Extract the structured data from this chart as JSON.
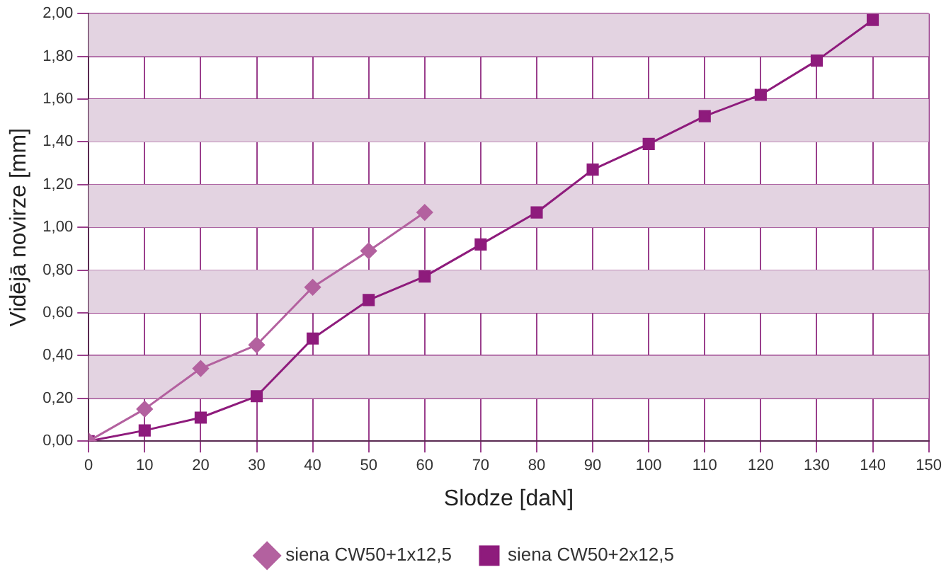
{
  "chart_data": {
    "type": "line",
    "xlabel": "Slodze [daN]",
    "ylabel": "Vidējā novirze [mm]",
    "xlim": [
      0,
      150
    ],
    "xticks": [
      0,
      10,
      20,
      30,
      40,
      50,
      60,
      70,
      80,
      90,
      100,
      110,
      120,
      130,
      140,
      150
    ],
    "ylim": [
      0,
      2
    ],
    "yticks": [
      {
        "value": 0,
        "label": "0,00"
      },
      {
        "value": 0.2,
        "label": "0,20"
      },
      {
        "value": 0.4,
        "label": "0,40"
      },
      {
        "value": 0.6,
        "label": "0,60"
      },
      {
        "value": 0.8,
        "label": "0,80"
      },
      {
        "value": 1,
        "label": "1,00"
      },
      {
        "value": 1.2,
        "label": "1,20"
      },
      {
        "value": 1.4,
        "label": "1,40"
      },
      {
        "value": 1.6,
        "label": "1,60"
      },
      {
        "value": 1.8,
        "label": "1,80"
      },
      {
        "value": 2,
        "label": "2,00"
      }
    ],
    "grid": true,
    "legend": "bottom",
    "line_style": "solid",
    "bands": [
      {
        "axis": "y",
        "from": 0.2,
        "to": 0.4,
        "color": "#e3d3e1"
      },
      {
        "axis": "y",
        "from": 0.6,
        "to": 0.8,
        "color": "#e3d3e1"
      },
      {
        "axis": "y",
        "from": 1.0,
        "to": 1.2,
        "color": "#e3d3e1"
      },
      {
        "axis": "y",
        "from": 1.4,
        "to": 1.6,
        "color": "#e3d3e1"
      },
      {
        "axis": "y",
        "from": 1.8,
        "to": 2.0,
        "color": "#e3d3e1"
      }
    ],
    "series": [
      {
        "name": "siena CW50+1x12,5",
        "color": "#b3619f",
        "marker": "diamond",
        "x": [
          0,
          10,
          20,
          30,
          40,
          50,
          60
        ],
        "values": [
          0,
          0.15,
          0.34,
          0.45,
          0.72,
          0.89,
          1.07
        ]
      },
      {
        "name": "siena CW50+2x12,5",
        "color": "#8e1b7c",
        "marker": "square",
        "x": [
          0,
          10,
          20,
          30,
          40,
          50,
          60,
          70,
          80,
          90,
          100,
          110,
          120,
          130,
          140
        ],
        "values": [
          0,
          0.05,
          0.11,
          0.21,
          0.48,
          0.66,
          0.77,
          0.92,
          1.07,
          1.27,
          1.39,
          1.52,
          1.62,
          1.78,
          1.97
        ]
      }
    ]
  }
}
